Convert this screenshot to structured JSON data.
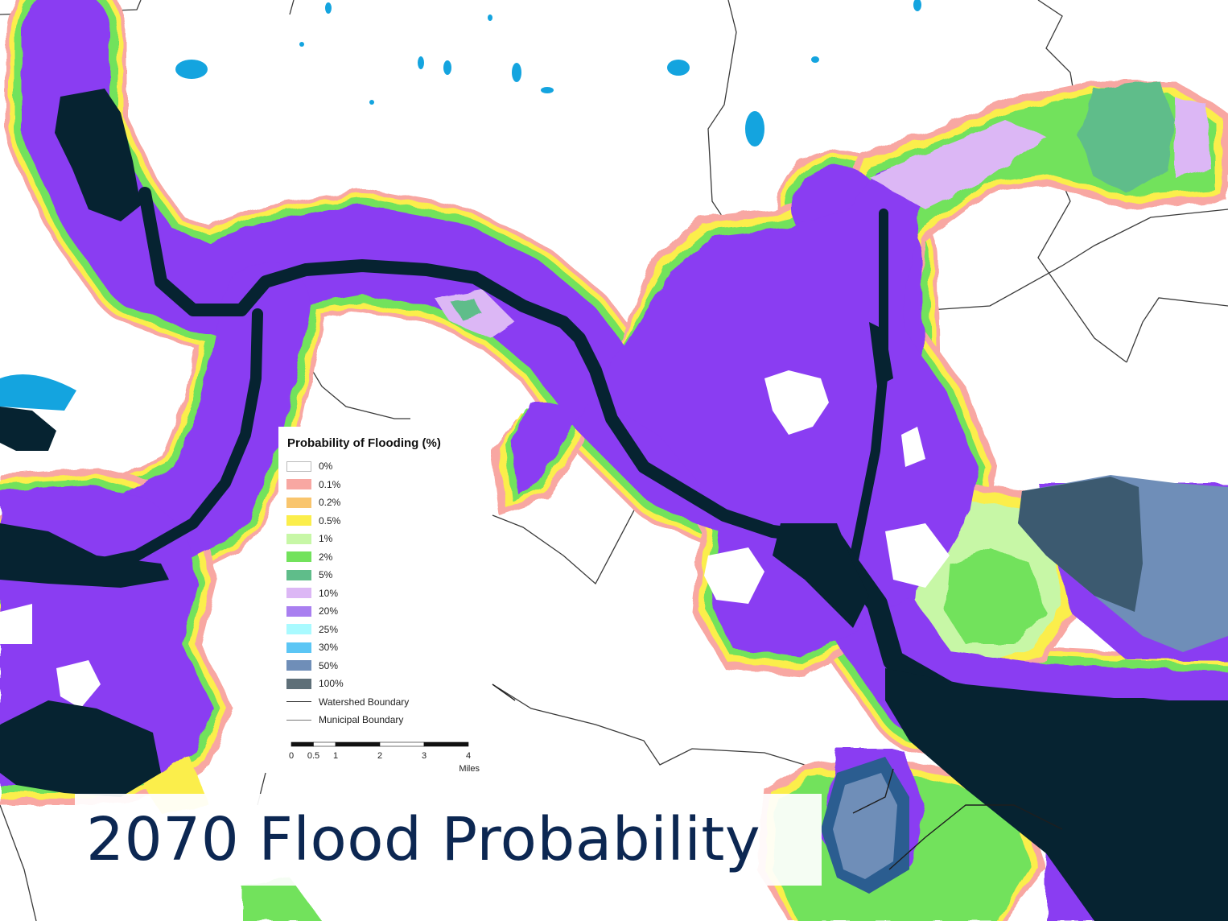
{
  "caption": {
    "text": "2070 Flood Probability"
  },
  "legend": {
    "title": "Probability of Flooding (%)",
    "items": [
      {
        "label": "0%",
        "color": "#ffffff",
        "kind": "none"
      },
      {
        "label": "0.1%",
        "color": "#f8a7a2",
        "kind": "fill"
      },
      {
        "label": "0.2%",
        "color": "#f9c56d",
        "kind": "fill"
      },
      {
        "label": "0.5%",
        "color": "#fbee4b",
        "kind": "fill"
      },
      {
        "label": "1%",
        "color": "#c7f7a6",
        "kind": "fill"
      },
      {
        "label": "2%",
        "color": "#72e25c",
        "kind": "fill"
      },
      {
        "label": "5%",
        "color": "#5fbd8a",
        "kind": "fill"
      },
      {
        "label": "10%",
        "color": "#dcb7f5",
        "kind": "fill"
      },
      {
        "label": "20%",
        "color": "#a97ff0",
        "kind": "fill"
      },
      {
        "label": "25%",
        "color": "#a9faff",
        "kind": "fill"
      },
      {
        "label": "30%",
        "color": "#5bc6f5",
        "kind": "fill"
      },
      {
        "label": "50%",
        "color": "#6f8eb8",
        "kind": "fill"
      },
      {
        "label": "100%",
        "color": "#5e6f78",
        "kind": "fill"
      },
      {
        "label": "Watershed Boundary",
        "color": "#333333",
        "kind": "line"
      },
      {
        "label": "Municipal Boundary",
        "color": "#777777",
        "kind": "line"
      }
    ]
  },
  "scalebar": {
    "ticks": [
      "0",
      "0.5",
      "1",
      "2",
      "3",
      "4"
    ],
    "tick_values": [
      0,
      0.5,
      1,
      2,
      3,
      4
    ],
    "unit": "Miles"
  },
  "colors": {
    "flood_main": "#8a3cf2",
    "water_channel": "#062331",
    "lake": "#14a4df",
    "caption_text": "#0c2752",
    "boundary": "#3a3a3a"
  }
}
